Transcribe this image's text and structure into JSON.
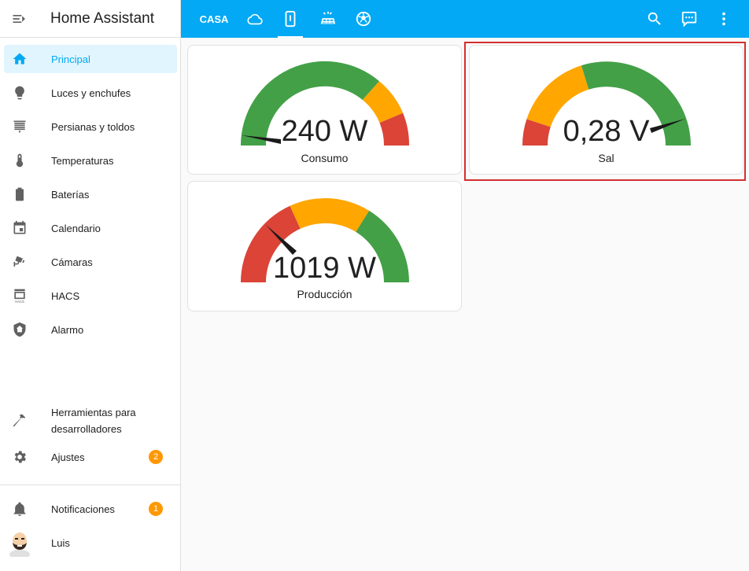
{
  "app": {
    "title": "Home Assistant"
  },
  "sidebar": {
    "items": [
      {
        "label": "Principal",
        "icon": "home-icon"
      },
      {
        "label": "Luces y enchufes",
        "icon": "lightbulb-icon"
      },
      {
        "label": "Persianas y toldos",
        "icon": "blinds-icon"
      },
      {
        "label": "Temperaturas",
        "icon": "thermometer-icon"
      },
      {
        "label": "Baterías",
        "icon": "battery-icon"
      },
      {
        "label": "Calendario",
        "icon": "calendar-icon"
      },
      {
        "label": "Cámaras",
        "icon": "cctv-icon"
      },
      {
        "label": "HACS",
        "icon": "hacs-icon"
      },
      {
        "label": "Alarmo",
        "icon": "shield-home-icon"
      }
    ],
    "dev_tools": {
      "line1": "Herramientas para",
      "line2": "desarrolladores"
    },
    "settings": {
      "label": "Ajustes",
      "badge": "2"
    },
    "notifications": {
      "label": "Notificaciones",
      "badge": "1"
    },
    "user": {
      "label": "Luis"
    }
  },
  "topbar": {
    "tab_casa": "CASA",
    "icons": [
      "cloud-icon",
      "device-icon",
      "solar-power-icon",
      "soccer-icon"
    ],
    "actions": [
      "search-icon",
      "assist-icon",
      "more-vert-icon"
    ]
  },
  "colors": {
    "green": "#43a047",
    "yellow": "#ffa600",
    "red": "#db4437",
    "primary": "#03a9f4"
  },
  "gauges": [
    {
      "value": "240 W",
      "name": "Consumo"
    },
    {
      "value": "0,28 V",
      "name": "Sal"
    },
    {
      "value": "1019 W",
      "name": "Producción"
    }
  ]
}
